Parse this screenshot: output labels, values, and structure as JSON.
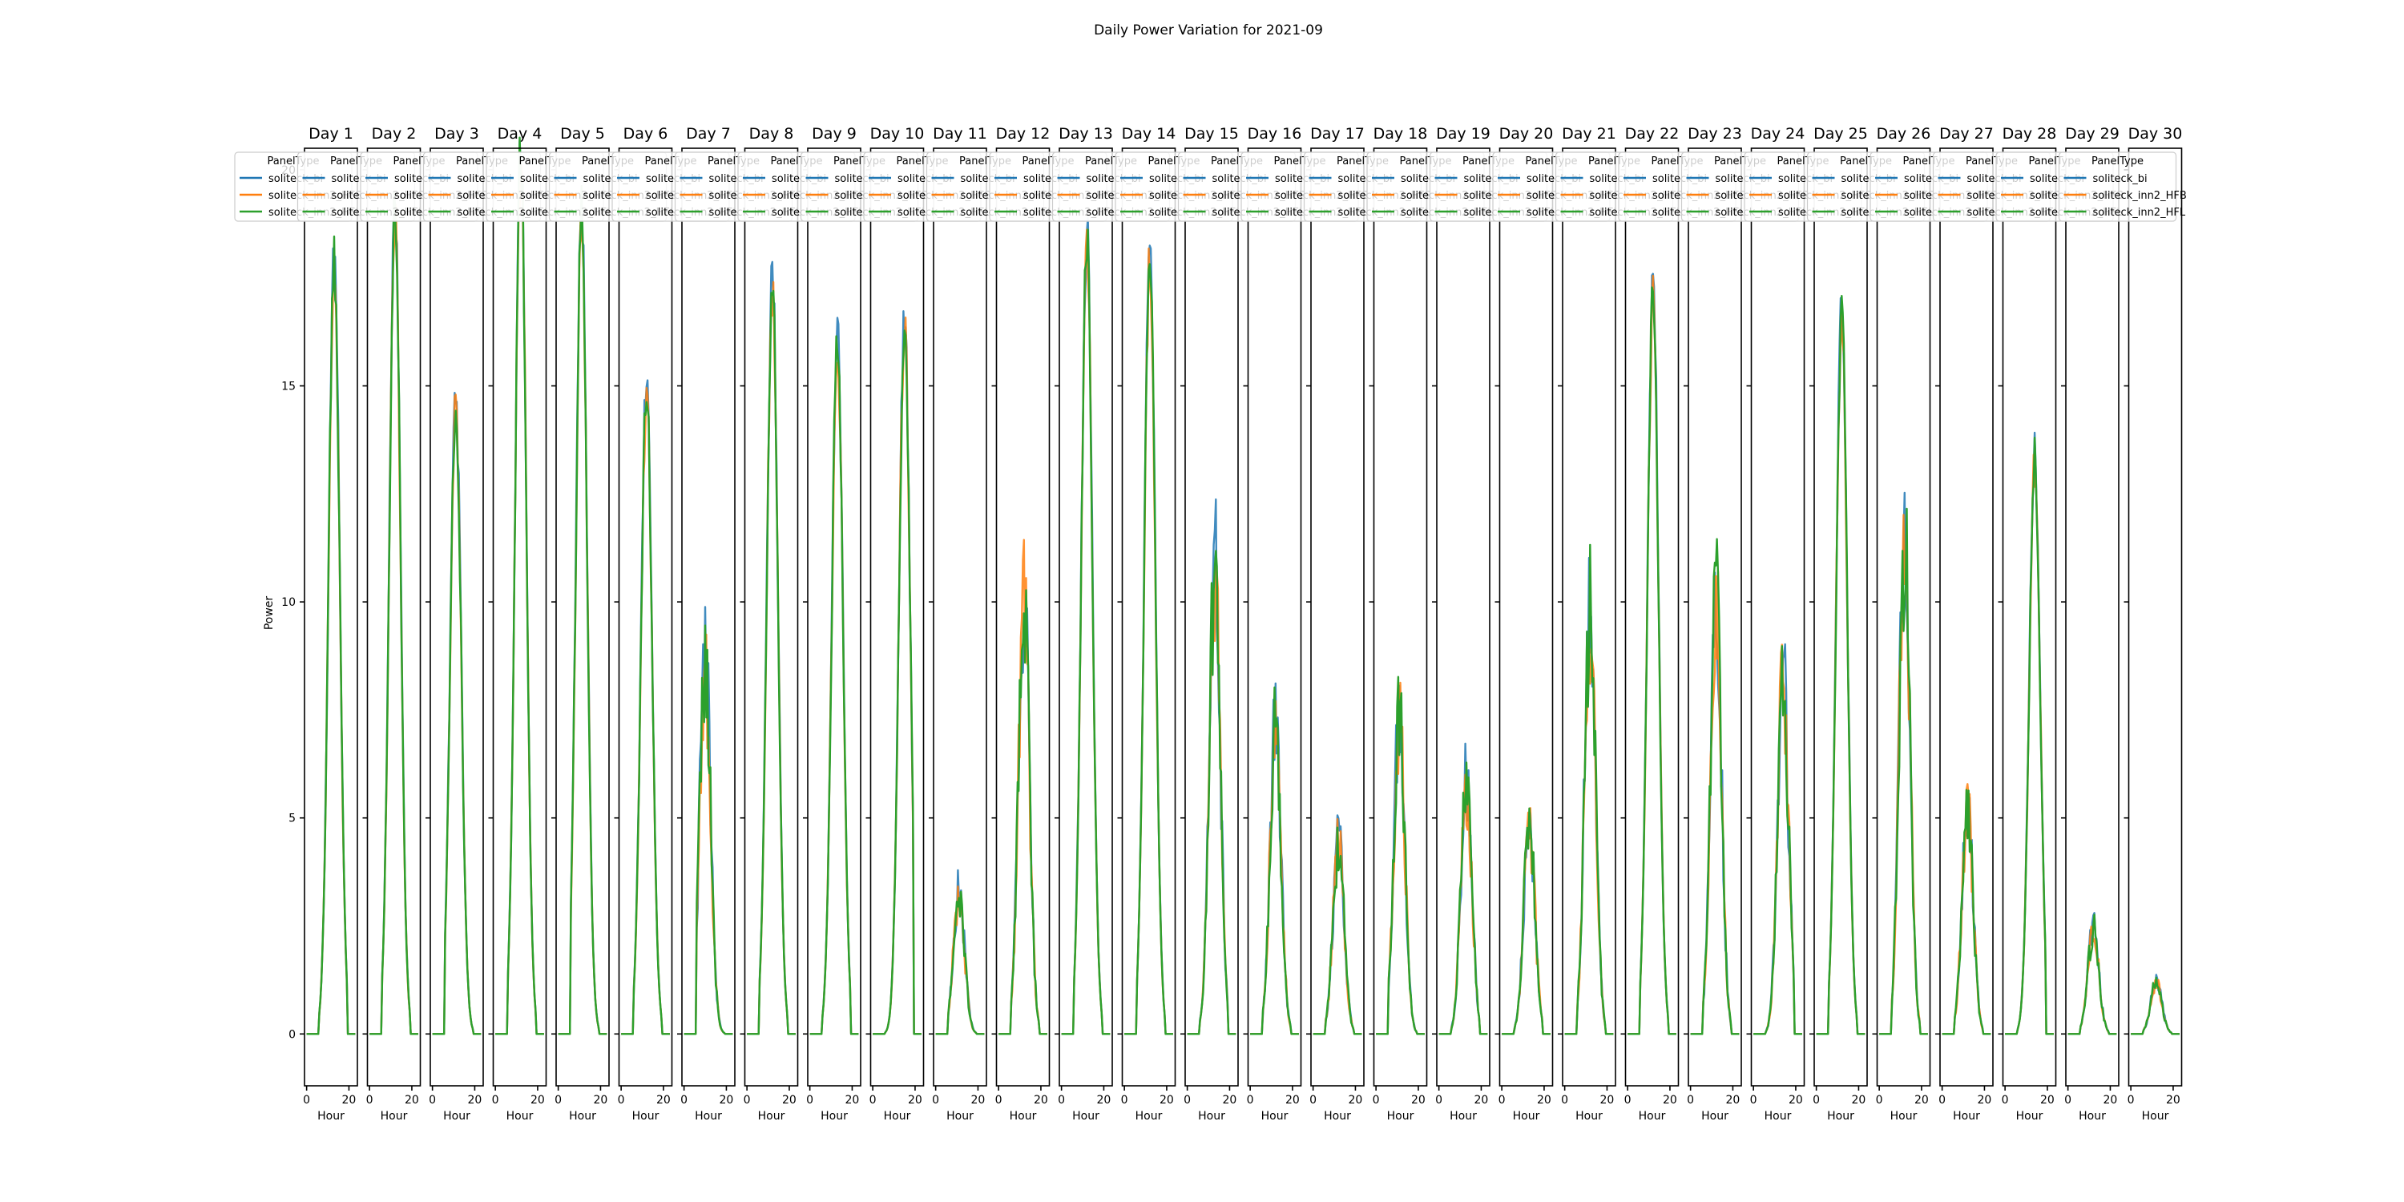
{
  "figure": {
    "suptitle": "Daily Power Variation for 2021-09",
    "ylabel": "Power",
    "xlabel": "Hour"
  },
  "chart_data": {
    "type": "line",
    "title": "Daily Power Variation for 2021-09",
    "xlabel": "Hour",
    "ylabel": "Power",
    "xlim": [
      -1,
      24
    ],
    "ylim": [
      -1.2,
      20.5
    ],
    "xticks": [
      0,
      20
    ],
    "yticks": [
      0,
      5,
      10,
      15,
      20
    ],
    "legend": {
      "title": "PanelType",
      "position": "top"
    },
    "series_names": [
      "soliteck_bi",
      "soliteck_inn2_HFB",
      "soliteck_inn2_HFL"
    ],
    "series_colors": [
      "#1f77b4",
      "#ff7f0e",
      "#2ca02c"
    ],
    "panels": [
      {
        "title": "Day 1",
        "peak": 18.0,
        "peak_hour": 13
      },
      {
        "title": "Day 2",
        "peak": 19.1,
        "peak_hour": 12
      },
      {
        "title": "Day 3",
        "peak": 14.6,
        "peak_hour": 11
      },
      {
        "title": "Day 4",
        "peak": 20.4,
        "peak_hour": 12
      },
      {
        "title": "Day 5",
        "peak": 18.9,
        "peak_hour": 11
      },
      {
        "title": "Day 6",
        "peak": 15.0,
        "peak_hour": 12
      },
      {
        "title": "Day 7",
        "peak": 8.5,
        "peak_hour": 10
      },
      {
        "title": "Day 8",
        "peak": 17.3,
        "peak_hour": 12
      },
      {
        "title": "Day 9",
        "peak": 16.2,
        "peak_hour": 13
      },
      {
        "title": "Day 10",
        "peak": 16.5,
        "peak_hour": 15
      },
      {
        "title": "Day 11",
        "peak": 3.3,
        "peak_hour": 11
      },
      {
        "title": "Day 12",
        "peak": 9.9,
        "peak_hour": 12
      },
      {
        "title": "Day 13",
        "peak": 18.3,
        "peak_hour": 12
      },
      {
        "title": "Day 14",
        "peak": 18.0,
        "peak_hour": 12
      },
      {
        "title": "Day 15",
        "peak": 10.6,
        "peak_hour": 13
      },
      {
        "title": "Day 16",
        "peak": 7.0,
        "peak_hour": 12
      },
      {
        "title": "Day 17",
        "peak": 4.4,
        "peak_hour": 12
      },
      {
        "title": "Day 18",
        "peak": 7.3,
        "peak_hour": 11
      },
      {
        "title": "Day 19",
        "peak": 5.8,
        "peak_hour": 13
      },
      {
        "title": "Day 20",
        "peak": 4.9,
        "peak_hour": 13
      },
      {
        "title": "Day 21",
        "peak": 9.8,
        "peak_hour": 12
      },
      {
        "title": "Day 22",
        "peak": 17.1,
        "peak_hour": 12
      },
      {
        "title": "Day 23",
        "peak": 10.0,
        "peak_hour": 12
      },
      {
        "title": "Day 24",
        "peak": 8.2,
        "peak_hour": 14
      },
      {
        "title": "Day 25",
        "peak": 16.7,
        "peak_hour": 12
      },
      {
        "title": "Day 26",
        "peak": 11.3,
        "peak_hour": 12
      },
      {
        "title": "Day 27",
        "peak": 5.3,
        "peak_hour": 12
      },
      {
        "title": "Day 28",
        "peak": 13.3,
        "peak_hour": 14
      },
      {
        "title": "Day 29",
        "peak": 2.4,
        "peak_hour": 12
      },
      {
        "title": "Day 30",
        "peak": 1.2,
        "peak_hour": 12
      }
    ]
  }
}
